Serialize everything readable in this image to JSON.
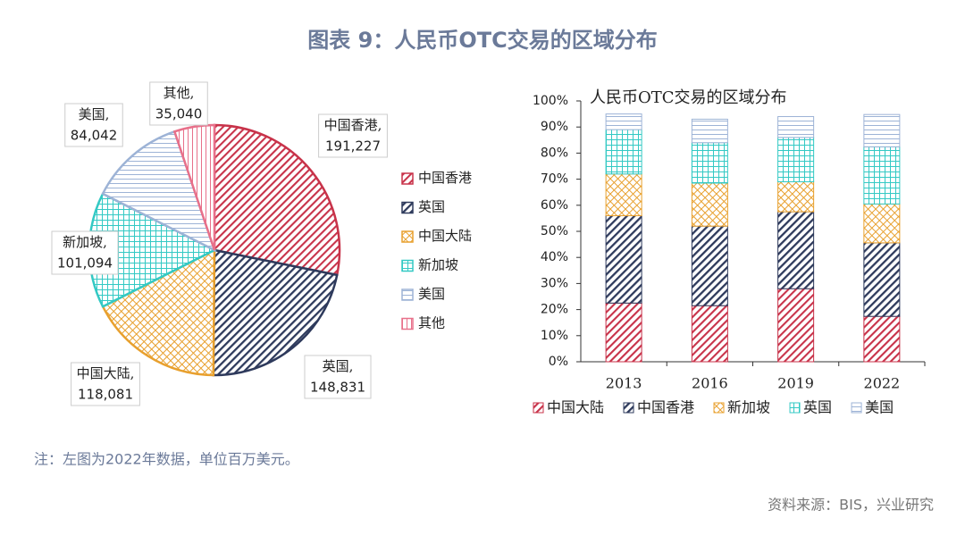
{
  "header": {
    "title": "图表 9：人民币OTC交易的区域分布"
  },
  "chart_data": [
    {
      "type": "pie",
      "categories": [
        "中国香港",
        "英国",
        "中国大陆",
        "新加坡",
        "美国",
        "其他"
      ],
      "values": [
        191227,
        148831,
        118081,
        101094,
        84042,
        35040
      ],
      "value_labels": [
        "191,227",
        "148,831",
        "118,081",
        "101,094",
        "84,042",
        "35,040"
      ],
      "label_separator": ",",
      "colors": [
        "#c8334a",
        "#2e3a5c",
        "#e8a02e",
        "#33c9c4",
        "#9db3d6",
        "#e8708a"
      ],
      "legend": "right"
    },
    {
      "type": "stacked_bar",
      "title": "人民币OTC交易的区域分布",
      "categories": [
        "2013",
        "2016",
        "2019",
        "2022"
      ],
      "series": [
        {
          "name": "中国大陆",
          "color": "#c8334a",
          "values": [
            22.5,
            21.5,
            28,
            17.4
          ]
        },
        {
          "name": "中国香港",
          "color": "#2e3a5c",
          "values": [
            33.5,
            30.5,
            29.5,
            28.2
          ]
        },
        {
          "name": "新加坡",
          "color": "#e8a02e",
          "values": [
            16,
            16.5,
            11.5,
            14.9
          ]
        },
        {
          "name": "英国",
          "color": "#33c9c4",
          "values": [
            17,
            15.5,
            17,
            21.9
          ]
        },
        {
          "name": "美国",
          "color": "#9db3d6",
          "values": [
            6,
            9,
            8,
            12.4
          ]
        }
      ],
      "ylim": [
        0,
        100
      ],
      "yticks": [
        {
          "value": 0,
          "label": "0%"
        },
        {
          "value": 10,
          "label": "10%"
        },
        {
          "value": 20,
          "label": "20%"
        },
        {
          "value": 30,
          "label": "30%"
        },
        {
          "value": 40,
          "label": "40%"
        },
        {
          "value": 50,
          "label": "50%"
        },
        {
          "value": 60,
          "label": "60%"
        },
        {
          "value": 70,
          "label": "70%"
        },
        {
          "value": 80,
          "label": "80%"
        },
        {
          "value": 90,
          "label": "90%"
        },
        {
          "value": 100,
          "label": "100%"
        }
      ],
      "grid": false,
      "legend": "bottom"
    }
  ],
  "note": "注：左图为2022年数据，单位百万美元。",
  "source": "资料来源：BIS，兴业研究"
}
